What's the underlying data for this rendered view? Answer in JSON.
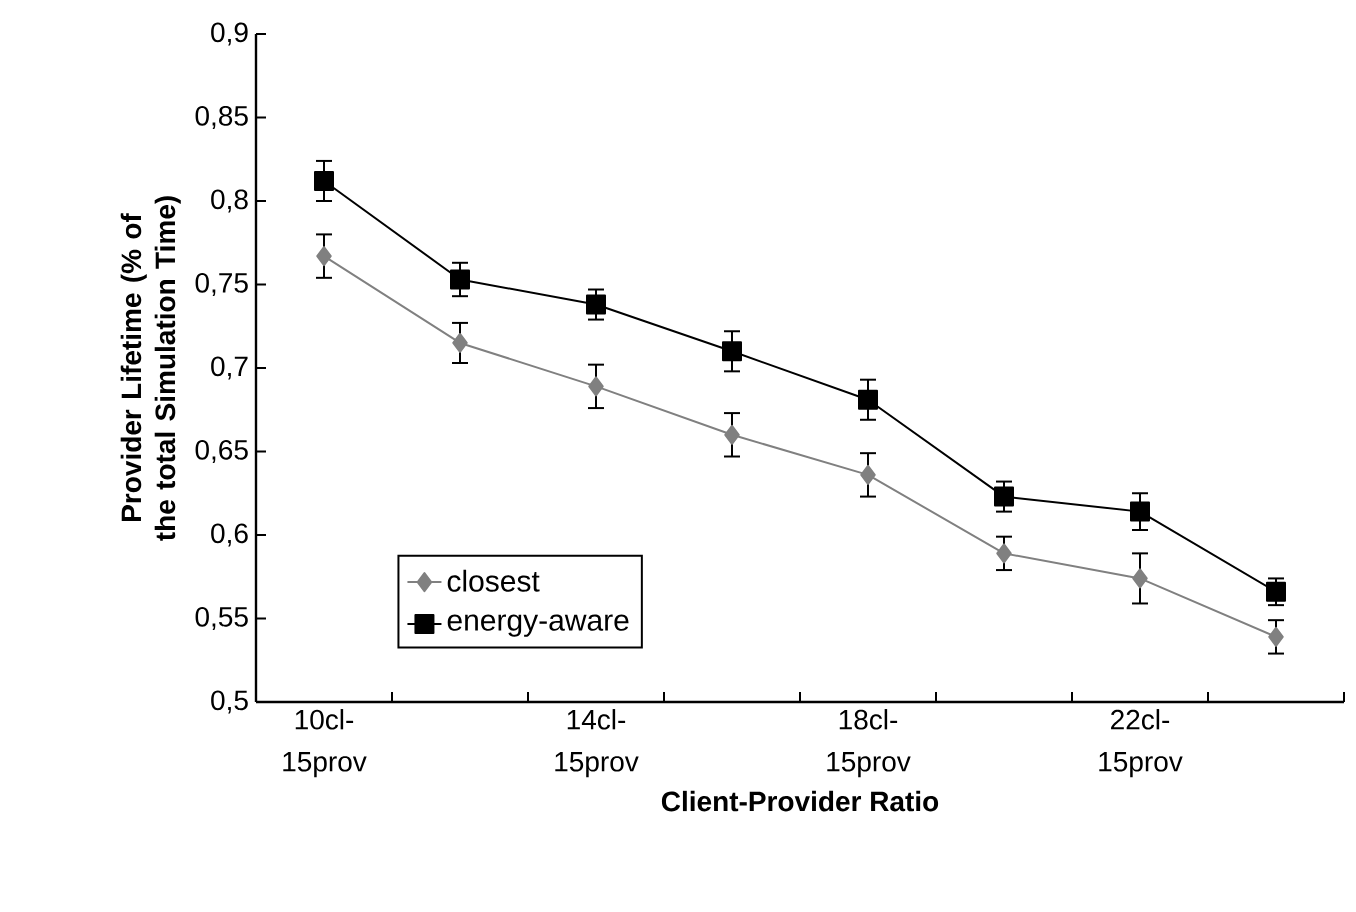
{
  "chart_data": {
    "type": "line",
    "xlabel": "Client-Provider Ratio",
    "ylabel": "Provider Lifetime (% of the total Simulation Time)",
    "categories": [
      "10cl-15prov",
      null,
      "14cl-15prov",
      null,
      "18cl-15prov",
      null,
      "22cl-15prov",
      null
    ],
    "ylim": [
      0.5,
      0.9
    ],
    "yticks": [
      {
        "value": 0.5,
        "label": "0,5"
      },
      {
        "value": 0.55,
        "label": "0,55"
      },
      {
        "value": 0.6,
        "label": "0,6"
      },
      {
        "value": 0.65,
        "label": "0,65"
      },
      {
        "value": 0.7,
        "label": "0,7"
      },
      {
        "value": 0.75,
        "label": "0,75"
      },
      {
        "value": 0.8,
        "label": "0,8"
      },
      {
        "value": 0.85,
        "label": "0,85"
      },
      {
        "value": 0.9,
        "label": "0,9"
      }
    ],
    "grid": false,
    "legend": "bottom left",
    "series": [
      {
        "name": "closest",
        "color": "#808080",
        "marker": "diamond",
        "values": [
          0.767,
          0.715,
          0.689,
          0.66,
          0.636,
          0.589,
          0.574,
          0.539
        ],
        "errors": [
          0.013,
          0.012,
          0.013,
          0.013,
          0.013,
          0.01,
          0.015,
          0.01
        ]
      },
      {
        "name": "energy-aware",
        "color": "#000000",
        "marker": "square",
        "values": [
          0.812,
          0.753,
          0.738,
          0.71,
          0.681,
          0.623,
          0.614,
          0.566
        ],
        "errors": [
          0.012,
          0.01,
          0.009,
          0.012,
          0.012,
          0.009,
          0.011,
          0.008
        ]
      }
    ]
  }
}
